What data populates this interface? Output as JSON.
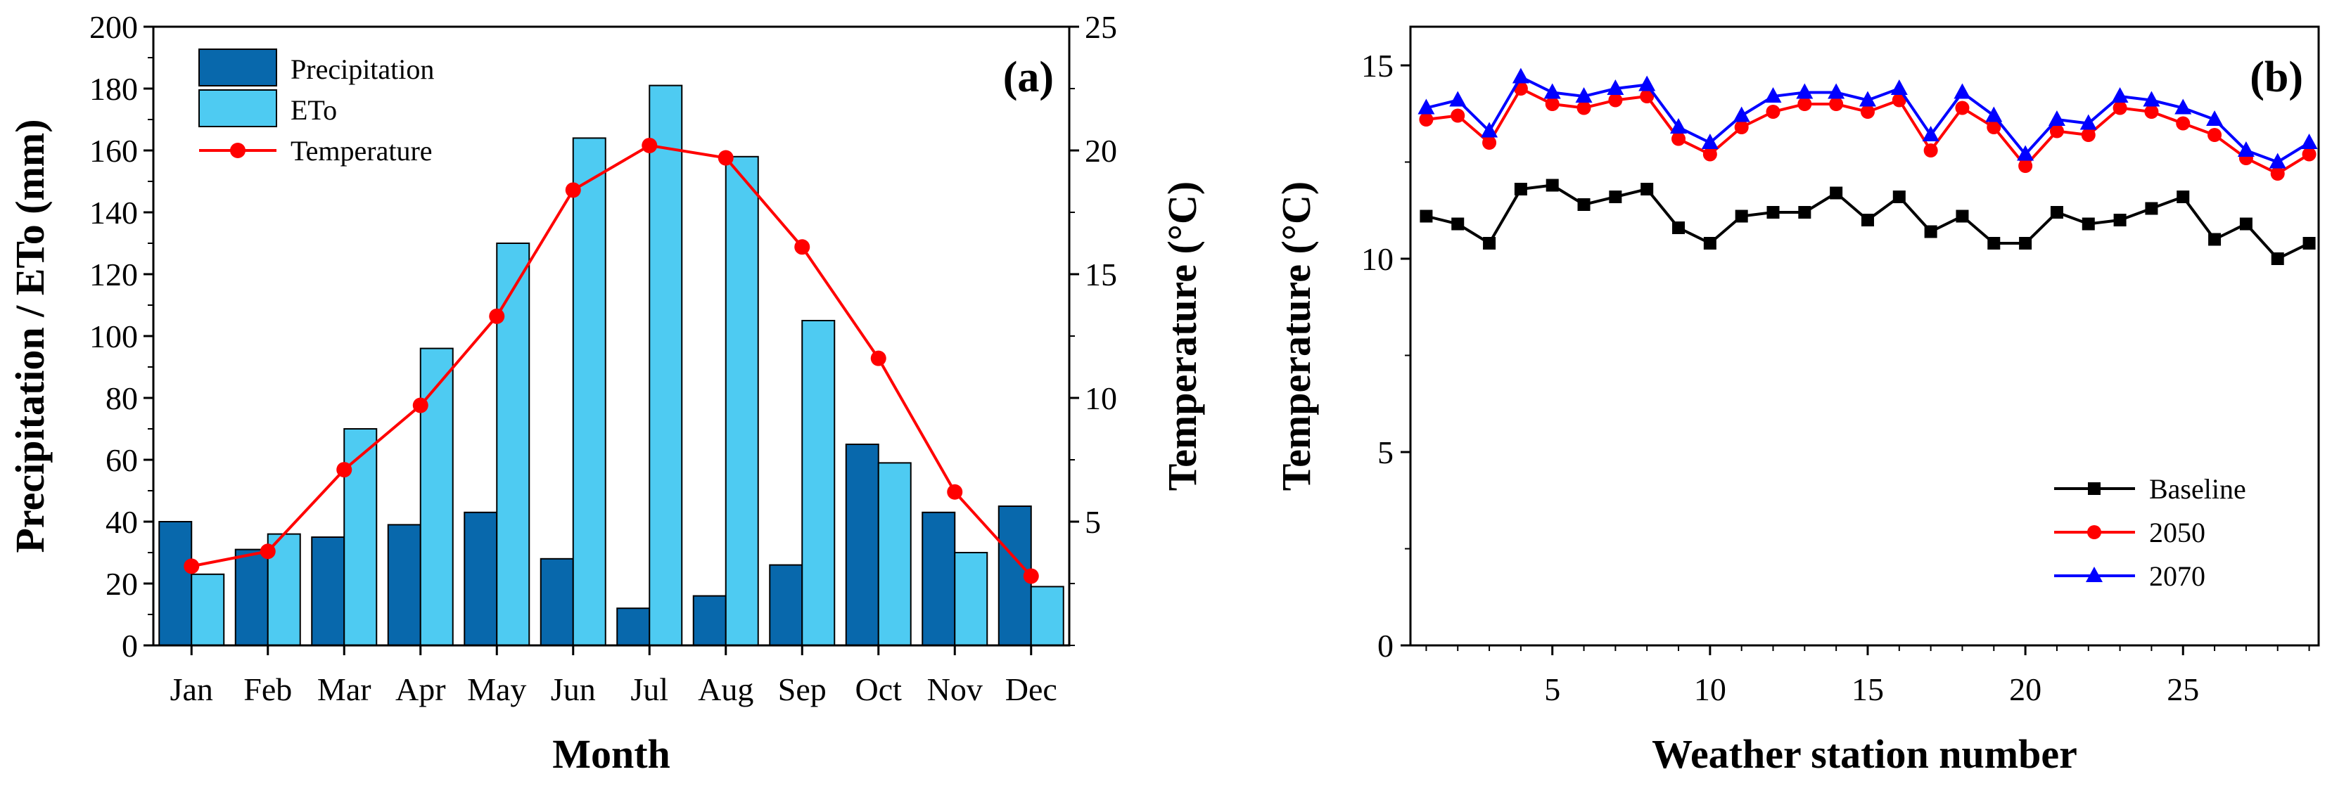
{
  "chart_data": [
    {
      "type": "bar",
      "panel_label": "(a)",
      "xlabel": "Month",
      "ylabel": "Precipitation / ETo (mm)",
      "y2label": "Temperature (°C)",
      "categories": [
        "Jan",
        "Feb",
        "Mar",
        "Apr",
        "May",
        "Jun",
        "Jul",
        "Aug",
        "Sep",
        "Oct",
        "Nov",
        "Dec"
      ],
      "ylim": [
        0,
        200
      ],
      "y_ticks": [
        0,
        20,
        40,
        60,
        80,
        100,
        120,
        140,
        160,
        180,
        200
      ],
      "y2lim": [
        0,
        25
      ],
      "y2_ticks": [
        5,
        10,
        15,
        20,
        25
      ],
      "series": [
        {
          "name": "Precipitation",
          "kind": "bar",
          "color": "#0868ac",
          "values": [
            40,
            31,
            35,
            39,
            43,
            28,
            12,
            16,
            26,
            65,
            43,
            45
          ]
        },
        {
          "name": "ETo",
          "kind": "bar",
          "color": "#4ecbf2",
          "values": [
            23,
            36,
            70,
            96,
            130,
            164,
            181,
            158,
            105,
            59,
            30,
            19
          ]
        },
        {
          "name": "Temperature",
          "kind": "line",
          "axis": "right",
          "color": "#ff0000",
          "values": [
            3.2,
            3.8,
            7.1,
            9.7,
            13.3,
            18.4,
            20.2,
            19.7,
            16.1,
            11.6,
            6.2,
            2.8
          ]
        }
      ],
      "legend": [
        "Precipitation",
        "ETo",
        "Temperature"
      ],
      "legend_position": "top-left"
    },
    {
      "type": "line",
      "panel_label": "(b)",
      "xlabel": "Weather station number",
      "ylabel": "Temperature (°C)",
      "x": [
        1,
        2,
        3,
        4,
        5,
        6,
        7,
        8,
        9,
        10,
        11,
        12,
        13,
        14,
        15,
        16,
        17,
        18,
        19,
        20,
        21,
        22,
        23,
        24,
        25,
        26,
        27,
        28,
        29
      ],
      "xlim": [
        0.5,
        29.3
      ],
      "x_ticks": [
        5,
        10,
        15,
        20,
        25
      ],
      "ylim": [
        0,
        16
      ],
      "y_ticks": [
        0,
        5,
        10,
        15
      ],
      "series": [
        {
          "name": "Baseline",
          "color": "#000000",
          "marker": "square",
          "values": [
            11.1,
            10.9,
            10.4,
            11.8,
            11.9,
            11.4,
            11.6,
            11.8,
            10.8,
            10.4,
            11.1,
            11.2,
            11.2,
            11.7,
            11.0,
            11.6,
            10.7,
            11.1,
            10.4,
            10.4,
            11.2,
            10.9,
            11.0,
            11.3,
            11.6,
            10.5,
            10.9,
            10.0,
            10.4
          ]
        },
        {
          "name": "2050",
          "color": "#ff0000",
          "marker": "circle",
          "values": [
            13.6,
            13.7,
            13.0,
            14.4,
            14.0,
            13.9,
            14.1,
            14.2,
            13.1,
            12.7,
            13.4,
            13.8,
            14.0,
            14.0,
            13.8,
            14.1,
            12.8,
            13.9,
            13.4,
            12.4,
            13.3,
            13.2,
            13.9,
            13.8,
            13.5,
            13.2,
            12.6,
            12.2,
            12.7
          ]
        },
        {
          "name": "2070",
          "color": "#0000ff",
          "marker": "triangle",
          "values": [
            13.9,
            14.1,
            13.3,
            14.7,
            14.3,
            14.2,
            14.4,
            14.5,
            13.4,
            13.0,
            13.7,
            14.2,
            14.3,
            14.3,
            14.1,
            14.4,
            13.2,
            14.3,
            13.7,
            12.7,
            13.6,
            13.5,
            14.2,
            14.1,
            13.9,
            13.6,
            12.8,
            12.5,
            13.0
          ]
        }
      ],
      "legend": [
        "Baseline",
        "2050",
        "2070"
      ],
      "legend_position": "bottom-right"
    }
  ]
}
